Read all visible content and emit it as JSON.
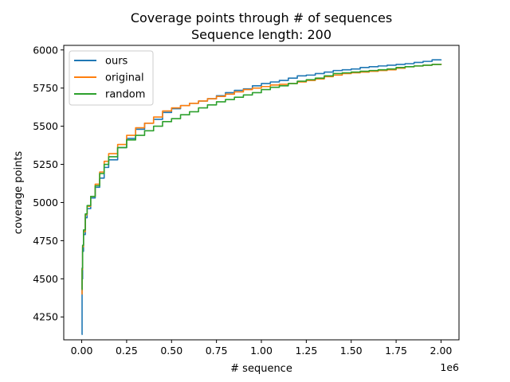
{
  "chart_data": {
    "type": "line",
    "title": "Coverage points through # of sequences",
    "subtitle": "Sequence length: 200",
    "xlabel": "# sequence",
    "ylabel": "coverage points",
    "x_offset_label": "1e6",
    "xlim": [
      -0.1,
      2.1
    ],
    "ylim": [
      4100,
      6030
    ],
    "x_ticks": [
      0.0,
      0.25,
      0.5,
      0.75,
      1.0,
      1.25,
      1.5,
      1.75,
      2.0
    ],
    "x_tick_labels": [
      "0.00",
      "0.25",
      "0.50",
      "0.75",
      "1.00",
      "1.25",
      "1.50",
      "1.75",
      "2.00"
    ],
    "y_ticks": [
      4250,
      4500,
      4750,
      5000,
      5250,
      5500,
      5750,
      6000
    ],
    "y_tick_labels": [
      "4250",
      "4500",
      "4750",
      "5000",
      "5250",
      "5500",
      "5750",
      "6000"
    ],
    "grid": false,
    "legend_position": "top-left",
    "series": [
      {
        "name": "ours",
        "color": "#1f77b4",
        "x": [
          0.0,
          0.002,
          0.005,
          0.01,
          0.02,
          0.03,
          0.05,
          0.075,
          0.1,
          0.125,
          0.15,
          0.2,
          0.25,
          0.3,
          0.35,
          0.4,
          0.45,
          0.5,
          0.55,
          0.6,
          0.65,
          0.7,
          0.75,
          0.8,
          0.85,
          0.9,
          0.95,
          1.0,
          1.05,
          1.1,
          1.15,
          1.2,
          1.25,
          1.3,
          1.35,
          1.4,
          1.45,
          1.5,
          1.55,
          1.6,
          1.65,
          1.7,
          1.75,
          1.8,
          1.85,
          1.9,
          1.95,
          2.0
        ],
        "y": [
          4135,
          4500,
          4680,
          4790,
          4900,
          4960,
          5030,
          5100,
          5160,
          5230,
          5280,
          5360,
          5420,
          5480,
          5520,
          5545,
          5590,
          5615,
          5635,
          5650,
          5665,
          5680,
          5700,
          5720,
          5735,
          5745,
          5765,
          5780,
          5790,
          5800,
          5815,
          5830,
          5835,
          5845,
          5855,
          5865,
          5870,
          5875,
          5885,
          5890,
          5895,
          5900,
          5905,
          5910,
          5918,
          5925,
          5935,
          5938
        ]
      },
      {
        "name": "original",
        "color": "#ff7f0e",
        "x": [
          0.0,
          0.002,
          0.005,
          0.01,
          0.02,
          0.03,
          0.05,
          0.075,
          0.1,
          0.125,
          0.15,
          0.2,
          0.25,
          0.3,
          0.35,
          0.4,
          0.45,
          0.5,
          0.55,
          0.6,
          0.65,
          0.7,
          0.75,
          0.8,
          0.85,
          0.9,
          0.95,
          1.0,
          1.05,
          1.1,
          1.15,
          1.2,
          1.25,
          1.3,
          1.35,
          1.4,
          1.45,
          1.5,
          1.55,
          1.6,
          1.65,
          1.7,
          1.75,
          1.8,
          1.85,
          1.9,
          1.95,
          2.0
        ],
        "y": [
          4400,
          4560,
          4710,
          4810,
          4920,
          4975,
          5040,
          5120,
          5200,
          5270,
          5320,
          5380,
          5440,
          5490,
          5520,
          5560,
          5600,
          5620,
          5635,
          5650,
          5665,
          5680,
          5695,
          5710,
          5725,
          5740,
          5750,
          5760,
          5770,
          5775,
          5780,
          5790,
          5800,
          5810,
          5825,
          5835,
          5845,
          5850,
          5855,
          5860,
          5865,
          5870,
          5880,
          5890,
          5895,
          5900,
          5905,
          5910
        ]
      },
      {
        "name": "random",
        "color": "#2ca02c",
        "x": [
          0.0,
          0.002,
          0.005,
          0.01,
          0.02,
          0.03,
          0.05,
          0.075,
          0.1,
          0.125,
          0.15,
          0.2,
          0.25,
          0.3,
          0.35,
          0.4,
          0.45,
          0.5,
          0.55,
          0.6,
          0.65,
          0.7,
          0.75,
          0.8,
          0.85,
          0.9,
          0.95,
          1.0,
          1.05,
          1.1,
          1.15,
          1.2,
          1.25,
          1.3,
          1.35,
          1.4,
          1.45,
          1.5,
          1.55,
          1.6,
          1.65,
          1.7,
          1.75,
          1.8,
          1.85,
          1.9,
          1.95,
          2.0
        ],
        "y": [
          4430,
          4570,
          4720,
          4820,
          4925,
          4980,
          5040,
          5110,
          5190,
          5250,
          5300,
          5360,
          5410,
          5440,
          5470,
          5500,
          5530,
          5550,
          5575,
          5595,
          5620,
          5640,
          5660,
          5675,
          5690,
          5705,
          5720,
          5740,
          5755,
          5765,
          5780,
          5795,
          5805,
          5815,
          5830,
          5845,
          5850,
          5855,
          5860,
          5865,
          5870,
          5875,
          5885,
          5890,
          5895,
          5900,
          5905,
          5908
        ]
      }
    ]
  }
}
